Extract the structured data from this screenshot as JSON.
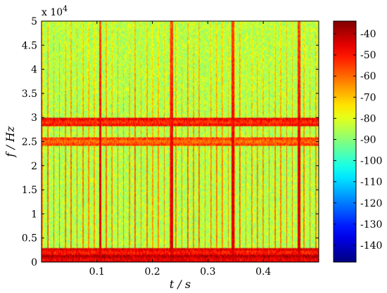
{
  "chart_data": {
    "type": "heatmap",
    "title": "",
    "xlabel": "t / s",
    "ylabel": "f / Hz",
    "xlim": [
      0.0,
      0.5
    ],
    "ylim": [
      0,
      50000
    ],
    "x_ticks": [
      "0.1",
      "0.2",
      "0.3",
      "0.4"
    ],
    "x_tick_values": [
      0.1,
      0.2,
      0.3,
      0.4
    ],
    "y_ticks": [
      "0",
      "0.5",
      "1",
      "1.5",
      "2",
      "2.5",
      "3",
      "3.5",
      "4",
      "4.5",
      "5"
    ],
    "y_tick_values": [
      0,
      5000,
      10000,
      15000,
      20000,
      25000,
      30000,
      35000,
      40000,
      45000,
      50000
    ],
    "y_multiplier_label": "x 10",
    "y_multiplier_exponent": "4",
    "colorbar": {
      "range": [
        -148,
        -34
      ],
      "ticks": [
        "-40",
        "-50",
        "-60",
        "-70",
        "-80",
        "-90",
        "-100",
        "-110",
        "-120",
        "-130",
        "-140"
      ],
      "tick_values": [
        -40,
        -50,
        -60,
        -70,
        -80,
        -90,
        -100,
        -110,
        -120,
        -130,
        -140
      ],
      "colormap": "jet"
    },
    "background_level_db": -85,
    "strong_impulse_times_s": [
      0.106,
      0.235,
      0.345,
      0.465
    ],
    "strong_impulse_level_db": -40,
    "high_energy_bands_hz": [
      {
        "center": 29000,
        "level_db": -55
      },
      {
        "center": 25000,
        "level_db": -62
      },
      {
        "center": 2000,
        "level_db": -52
      },
      {
        "center": 500,
        "level_db": -48
      }
    ],
    "grid": false
  }
}
